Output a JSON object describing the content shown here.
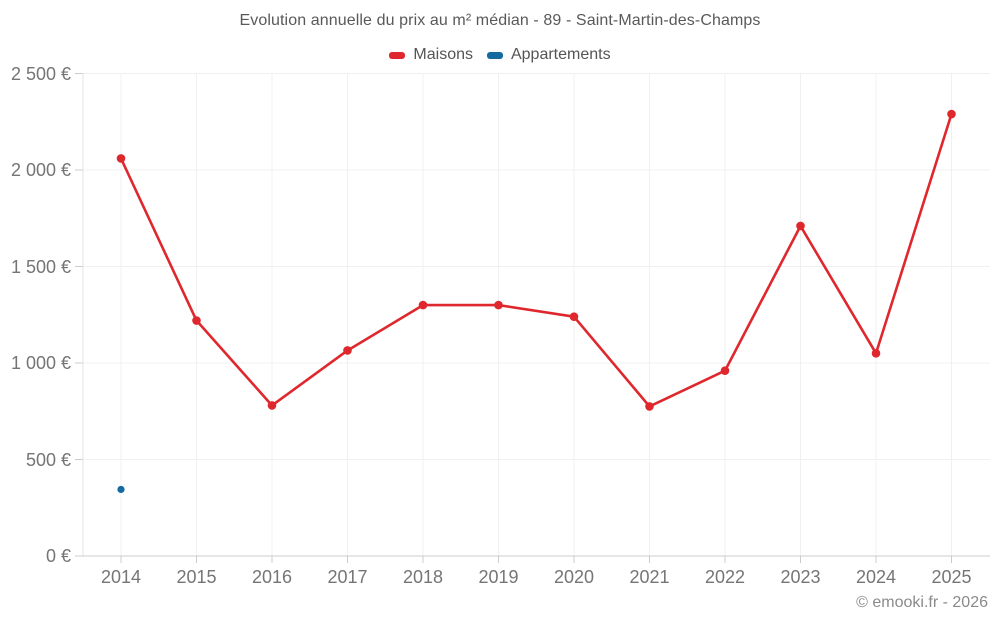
{
  "chart_data": {
    "type": "line",
    "title": "Evolution annuelle du prix au m² médian - 89 - Saint-Martin-des-Champs",
    "categories": [
      "2014",
      "2015",
      "2016",
      "2017",
      "2018",
      "2019",
      "2020",
      "2021",
      "2022",
      "2023",
      "2024",
      "2025"
    ],
    "series": [
      {
        "name": "Maisons",
        "color": "#de282d",
        "values": [
          2060,
          1220,
          780,
          1065,
          1300,
          1300,
          1240,
          775,
          960,
          1710,
          1050,
          2290
        ]
      },
      {
        "name": "Appartements",
        "color": "#156ba0",
        "values": [
          345,
          null,
          null,
          null,
          null,
          null,
          null,
          null,
          null,
          null,
          null,
          null
        ]
      }
    ],
    "xlabel": "",
    "ylabel": "",
    "ylim": [
      0,
      2500
    ],
    "y_ticks": [
      {
        "value": 0,
        "label": "0 €"
      },
      {
        "value": 500,
        "label": "500 €"
      },
      {
        "value": 1000,
        "label": "1 000 €"
      },
      {
        "value": 1500,
        "label": "1 500 €"
      },
      {
        "value": 2000,
        "label": "2 000 €"
      },
      {
        "value": 2500,
        "label": "2 500 €"
      }
    ],
    "grid": true,
    "legend_position": "top",
    "unit": "€"
  },
  "colors": {
    "grid": "#f0f0f0",
    "axis_x": "#cccccc",
    "axis_y": "#e3e3e3",
    "tick": "#cccccc"
  },
  "footer": {
    "credit": "© emooki.fr - 2026"
  }
}
